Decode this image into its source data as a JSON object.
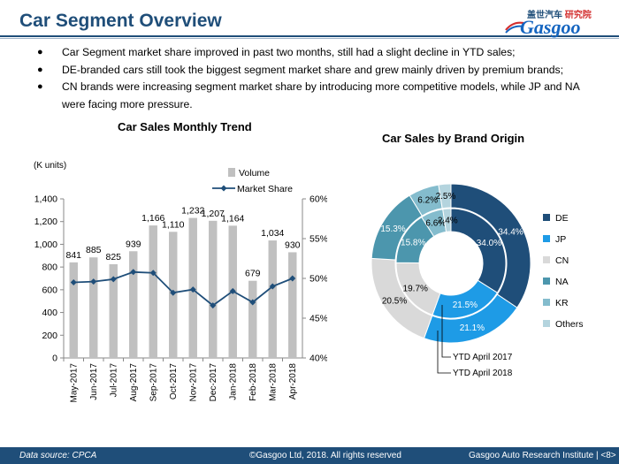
{
  "header": {
    "title": "Car Segment Overview",
    "logo_cn_a": "盖世汽车",
    "logo_cn_b": "研究院",
    "logo_en": "Gasgoo"
  },
  "bullets": [
    "Car Segment market share improved in past two months, still had a slight decline in YTD sales;",
    "DE-branded cars still took the biggest segment market share and grew mainly driven by premium brands;",
    "CN brands were increasing segment market share by introducing more competitive models, while JP and NA were facing more pressure."
  ],
  "chart_data": [
    {
      "type": "bar",
      "title": "Car Sales Monthly Trend",
      "ylabel": "(K units)",
      "categories": [
        "May-2017",
        "Jun-2017",
        "Jul-2017",
        "Aug-2017",
        "Sep-2017",
        "Oct-2017",
        "Nov-2017",
        "Dec-2017",
        "Jan-2018",
        "Feb-2018",
        "Mar-2018",
        "Apr-2018"
      ],
      "series": [
        {
          "name": "Volume",
          "type": "bar",
          "color": "#c0c0c0",
          "values": [
            841,
            885,
            825,
            939,
            1166,
            1110,
            1232,
            1207,
            1164,
            679,
            1034,
            930
          ]
        },
        {
          "name": "Market Share",
          "type": "line",
          "color": "#1f4e79",
          "axis": "right",
          "values": [
            0.495,
            0.496,
            0.499,
            0.508,
            0.507,
            0.482,
            0.486,
            0.466,
            0.484,
            0.47,
            0.49,
            0.5
          ]
        }
      ],
      "ylim": [
        0,
        1400
      ],
      "yticks": [
        "0",
        "200",
        "400",
        "600",
        "800",
        "1,000",
        "1,200",
        "1,400"
      ],
      "y2lim": [
        0.4,
        0.6
      ],
      "y2ticks": [
        "40%",
        "45%",
        "50%",
        "55%",
        "60%"
      ],
      "value_labels": [
        "841",
        "885",
        "825",
        "939",
        "1,166",
        "1,110",
        "1,232",
        "1,207",
        "1,164",
        "679",
        "1,034",
        "930"
      ],
      "legend_position": "top-right",
      "grid": false
    },
    {
      "type": "pie",
      "title": "Car Sales by Brand Origin",
      "categories": [
        "DE",
        "JP",
        "CN",
        "NA",
        "KR",
        "Others"
      ],
      "colors": [
        "#1f4e79",
        "#1e9be6",
        "#d9d9d9",
        "#4c96ad",
        "#84bccd",
        "#b4d4de"
      ],
      "series": [
        {
          "name": "YTD April 2018",
          "ring": "outer",
          "values": [
            34.4,
            21.1,
            20.5,
            15.3,
            6.2,
            2.5
          ],
          "labels": [
            "34.4%",
            "21.1%",
            "20.5%",
            "15.3%",
            "6.2%",
            "2.5%"
          ]
        },
        {
          "name": "YTD April 2017",
          "ring": "inner",
          "values": [
            34.0,
            21.5,
            19.7,
            15.8,
            6.6,
            2.4
          ],
          "labels": [
            "34.0%",
            "21.5%",
            "19.7%",
            "15.8%",
            "6.6%",
            "2.4%"
          ]
        }
      ],
      "legend_position": "right"
    }
  ],
  "footer": {
    "source": "Data source: CPCA",
    "copyright": "©Gasgoo Ltd, 2018.  All rights reserved",
    "institute": "Gasgoo Auto Research Institute  |  <8>"
  }
}
